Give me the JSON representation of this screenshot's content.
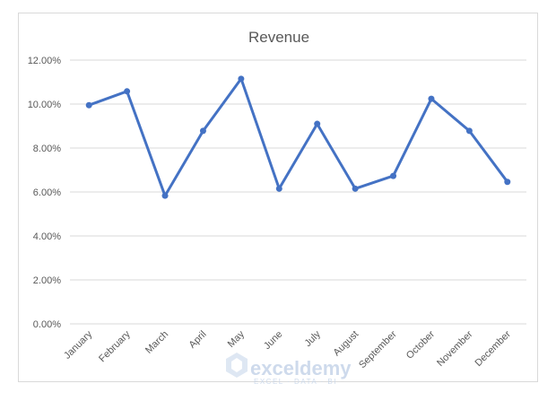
{
  "chart_data": {
    "type": "line",
    "title": "Revenue",
    "categories": [
      "January",
      "February",
      "March",
      "April",
      "May",
      "June",
      "July",
      "August",
      "September",
      "October",
      "November",
      "December"
    ],
    "series": [
      {
        "values": [
          0.0995,
          0.1058,
          0.0583,
          0.0878,
          0.1115,
          0.0615,
          0.091,
          0.0615,
          0.0673,
          0.1024,
          0.0878,
          0.0646
        ],
        "color": "#4472c4"
      }
    ],
    "ylim": [
      0,
      0.12
    ],
    "yticks": [
      "0.00%",
      "2.00%",
      "4.00%",
      "6.00%",
      "8.00%",
      "10.00%",
      "12.00%"
    ],
    "grid": true,
    "legend": "none"
  },
  "watermark": {
    "brand": "exceldemy",
    "tagline": "EXCEL · DATA · BI"
  }
}
